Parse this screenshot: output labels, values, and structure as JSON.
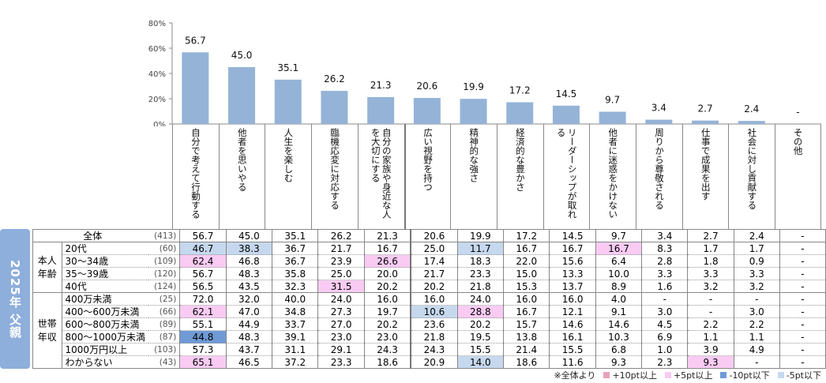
{
  "chart_data": {
    "type": "bar",
    "title": "",
    "xlabel": "",
    "ylabel": "",
    "ylim": [
      0,
      80
    ],
    "yticks": [
      "0%",
      "20%",
      "40%",
      "60%",
      "80%"
    ],
    "categories": [
      "自分で考えて行動する",
      "他者を思いやる",
      "人生を楽しむ",
      "臨機応変に対応する",
      "自分の家族や身近な人を大切にする",
      "広い視野を持つ",
      "精神的な強さ",
      "経済的な豊かさ",
      "リーダーシップが取れる",
      "他者に迷惑をかけない",
      "周りから尊敬される",
      "仕事で成果を出す",
      "社会に対し貢献する",
      "その他"
    ],
    "values": [
      56.7,
      45.0,
      35.1,
      26.2,
      21.3,
      20.6,
      19.9,
      17.2,
      14.5,
      9.7,
      3.4,
      2.7,
      2.4,
      null
    ],
    "labels": [
      "56.7",
      "45.0",
      "35.1",
      "26.2",
      "21.3",
      "20.6",
      "19.9",
      "17.2",
      "14.5",
      "9.7",
      "3.4",
      "2.7",
      "2.4",
      "-"
    ],
    "color": "#95b3d7"
  },
  "side_label": "2025年 父親",
  "groups": {
    "age": "本人年齢",
    "income": "世帯年収"
  },
  "rows": [
    {
      "label": "全体",
      "n": "(413)",
      "group": "",
      "values": [
        "56.7",
        "45.0",
        "35.1",
        "26.2",
        "21.3",
        "20.6",
        "19.9",
        "17.2",
        "14.5",
        "9.7",
        "3.4",
        "2.7",
        "2.4",
        "-"
      ],
      "flags": [
        "",
        "",
        "",
        "",
        "",
        "",
        "",
        "",
        "",
        "",
        "",
        "",
        "",
        ""
      ]
    },
    {
      "label": "20代",
      "n": "(60)",
      "group": "age",
      "values": [
        "46.7",
        "38.3",
        "36.7",
        "21.7",
        "16.7",
        "25.0",
        "11.7",
        "16.7",
        "16.7",
        "16.7",
        "8.3",
        "1.7",
        "1.7",
        "-"
      ],
      "flags": [
        "m5",
        "m5",
        "",
        "",
        "",
        "",
        "m5",
        "",
        "",
        "p5",
        "",
        "",
        "",
        ""
      ]
    },
    {
      "label": "30～34歳",
      "n": "(109)",
      "group": "age",
      "values": [
        "62.4",
        "46.8",
        "36.7",
        "23.9",
        "26.6",
        "17.4",
        "18.3",
        "22.0",
        "15.6",
        "6.4",
        "2.8",
        "1.8",
        "0.9",
        "-"
      ],
      "flags": [
        "p5",
        "",
        "",
        "",
        "p5",
        "",
        "",
        "",
        "",
        "",
        "",
        "",
        "",
        ""
      ]
    },
    {
      "label": "35～39歳",
      "n": "(120)",
      "group": "age",
      "values": [
        "56.7",
        "48.3",
        "35.8",
        "25.0",
        "20.0",
        "21.7",
        "23.3",
        "15.0",
        "13.3",
        "10.0",
        "3.3",
        "3.3",
        "3.3",
        "-"
      ],
      "flags": [
        "",
        "",
        "",
        "",
        "",
        "",
        "",
        "",
        "",
        "",
        "",
        "",
        "",
        ""
      ]
    },
    {
      "label": "40代",
      "n": "(124)",
      "group": "age",
      "values": [
        "56.5",
        "43.5",
        "32.3",
        "31.5",
        "20.2",
        "20.2",
        "21.8",
        "15.3",
        "13.7",
        "8.9",
        "1.6",
        "3.2",
        "3.2",
        "-"
      ],
      "flags": [
        "",
        "",
        "",
        "p5",
        "",
        "",
        "",
        "",
        "",
        "",
        "",
        "",
        "",
        ""
      ]
    },
    {
      "label": "400万未満",
      "n": "(25)",
      "group": "income",
      "values": [
        "72.0",
        "32.0",
        "40.0",
        "24.0",
        "16.0",
        "16.0",
        "24.0",
        "16.0",
        "16.0",
        "4.0",
        "-",
        "-",
        "-",
        "-"
      ],
      "flags": [
        "",
        "",
        "",
        "",
        "",
        "",
        "",
        "",
        "",
        "",
        "",
        "",
        "",
        ""
      ]
    },
    {
      "label": "400～600万未満",
      "n": "(66)",
      "group": "income",
      "values": [
        "62.1",
        "47.0",
        "34.8",
        "27.3",
        "19.7",
        "10.6",
        "28.8",
        "16.7",
        "12.1",
        "9.1",
        "3.0",
        "-",
        "3.0",
        "-"
      ],
      "flags": [
        "p5",
        "",
        "",
        "",
        "",
        "m5",
        "p5",
        "",
        "",
        "",
        "",
        "",
        "",
        ""
      ]
    },
    {
      "label": "600～800万未満",
      "n": "(89)",
      "group": "income",
      "values": [
        "55.1",
        "44.9",
        "33.7",
        "27.0",
        "20.2",
        "23.6",
        "20.2",
        "15.7",
        "14.6",
        "14.6",
        "4.5",
        "2.2",
        "2.2",
        "-"
      ],
      "flags": [
        "",
        "",
        "",
        "",
        "",
        "",
        "",
        "",
        "",
        "",
        "",
        "",
        "",
        ""
      ]
    },
    {
      "label": "800～1000万未満",
      "n": "(87)",
      "group": "income",
      "values": [
        "44.8",
        "48.3",
        "39.1",
        "23.0",
        "23.0",
        "21.8",
        "19.5",
        "13.8",
        "16.1",
        "10.3",
        "6.9",
        "1.1",
        "1.1",
        "-"
      ],
      "flags": [
        "m10",
        "",
        "",
        "",
        "",
        "",
        "",
        "",
        "",
        "",
        "",
        "",
        "",
        ""
      ]
    },
    {
      "label": "1000万円以上",
      "n": "(103)",
      "group": "income",
      "values": [
        "57.3",
        "43.7",
        "31.1",
        "29.1",
        "24.3",
        "24.3",
        "15.5",
        "21.4",
        "15.5",
        "6.8",
        "1.0",
        "3.9",
        "4.9",
        "-"
      ],
      "flags": [
        "",
        "",
        "",
        "",
        "",
        "",
        "",
        "",
        "",
        "",
        "",
        "",
        "",
        ""
      ]
    },
    {
      "label": "わからない",
      "n": "(43)",
      "group": "income",
      "values": [
        "65.1",
        "46.5",
        "37.2",
        "23.3",
        "18.6",
        "20.9",
        "14.0",
        "18.6",
        "11.6",
        "9.3",
        "2.3",
        "9.3",
        "-",
        "-"
      ],
      "flags": [
        "p5",
        "",
        "",
        "",
        "",
        "",
        "m5",
        "",
        "",
        "",
        "",
        "p5",
        "",
        ""
      ]
    }
  ],
  "legend": {
    "prefix": "※全体より",
    "items": [
      {
        "label": "+10pt以上",
        "color": "#eaa0bd"
      },
      {
        "label": "+5pt以上",
        "color": "#f9cbf3"
      },
      {
        "label": "-10pt以下",
        "color": "#6f9ad6"
      },
      {
        "label": "-5pt以下",
        "color": "#c6d8ee"
      }
    ]
  }
}
